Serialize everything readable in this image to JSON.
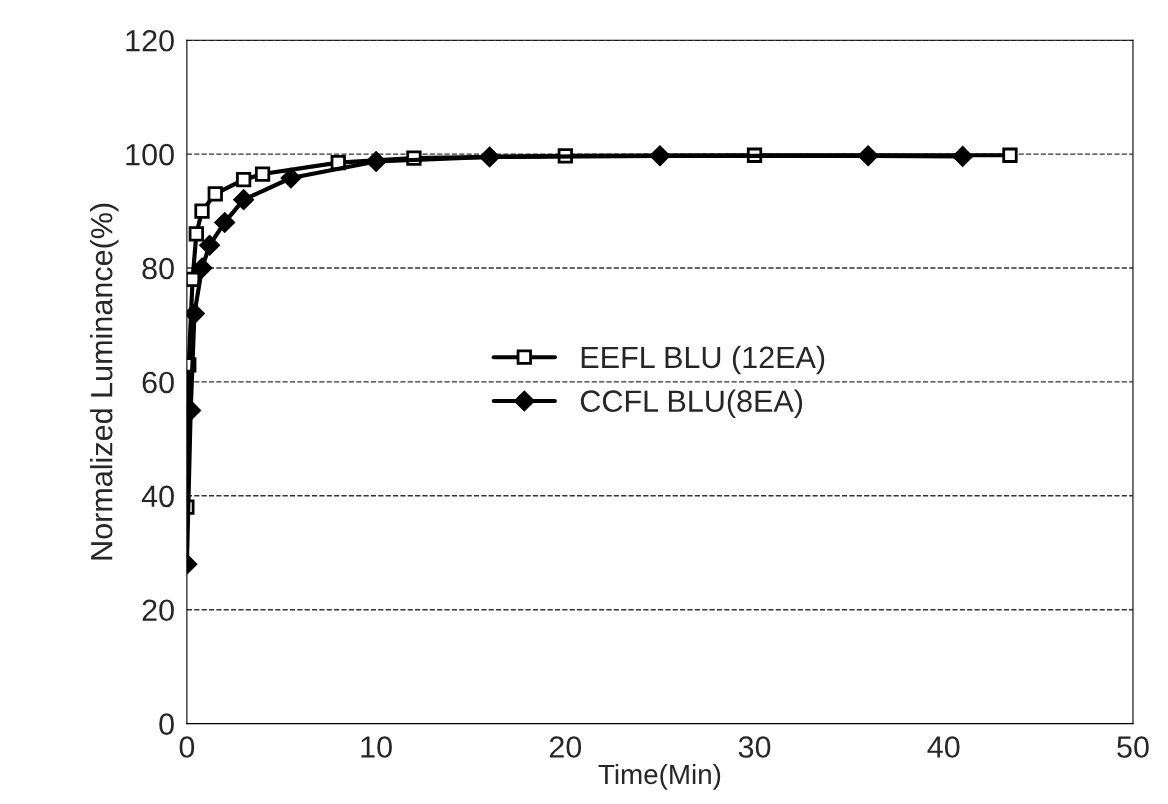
{
  "chart_data": {
    "type": "line",
    "xlabel": "Time(Min)",
    "ylabel": "Normalized Luminance(%)",
    "xlim": [
      0,
      50
    ],
    "xticks": [
      0,
      10,
      20,
      30,
      40,
      50
    ],
    "ylim": [
      0,
      120
    ],
    "yticks": [
      0,
      20,
      40,
      60,
      80,
      100,
      120
    ],
    "grid": "y",
    "legend": "center",
    "series": [
      {
        "name": "EEFL BLU (12EA)",
        "color": "#000000",
        "marker": "square",
        "x": [
          0,
          0.1,
          0.3,
          0.5,
          0.8,
          1.5,
          3,
          4,
          8,
          12,
          20,
          30,
          43.5
        ],
        "values": [
          38,
          63,
          78,
          86,
          90,
          93,
          95.5,
          96.5,
          98.5,
          99.3,
          99.7,
          99.8,
          99.8
        ]
      },
      {
        "name": "CCFL BLU(8EA)",
        "color": "#000000",
        "marker": "diamond",
        "x": [
          0,
          0.2,
          0.4,
          0.8,
          1.2,
          2,
          3,
          5.5,
          10,
          16,
          25,
          36,
          41
        ],
        "values": [
          28,
          55,
          72,
          80,
          84,
          88,
          92,
          95.8,
          98.7,
          99.5,
          99.7,
          99.7,
          99.6
        ]
      }
    ]
  }
}
